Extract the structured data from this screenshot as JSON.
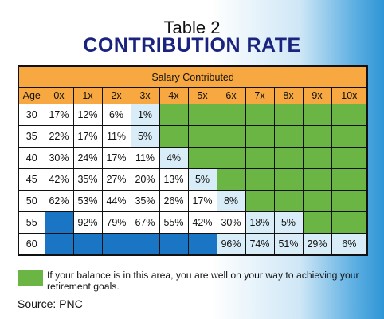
{
  "title_line1": "Table 2",
  "title_line2": "CONTRIBUTION RATE",
  "table": {
    "band_label": "Salary Contributed",
    "age_header": "Age",
    "columns": [
      "0x",
      "1x",
      "2x",
      "3x",
      "4x",
      "5x",
      "6x",
      "7x",
      "8x",
      "9x",
      "10x"
    ],
    "rows": [
      {
        "age": "30",
        "cells": [
          "17%",
          "12%",
          "6%",
          "1%",
          "",
          "",
          "",
          "",
          "",
          "",
          ""
        ],
        "fills": [
          "w",
          "w",
          "w",
          "l",
          "g",
          "g",
          "g",
          "g",
          "g",
          "g",
          "g"
        ]
      },
      {
        "age": "35",
        "cells": [
          "22%",
          "17%",
          "11%",
          "5%",
          "",
          "",
          "",
          "",
          "",
          "",
          ""
        ],
        "fills": [
          "w",
          "w",
          "w",
          "l",
          "g",
          "g",
          "g",
          "g",
          "g",
          "g",
          "g"
        ]
      },
      {
        "age": "40",
        "cells": [
          "30%",
          "24%",
          "17%",
          "11%",
          "4%",
          "",
          "",
          "",
          "",
          "",
          ""
        ],
        "fills": [
          "w",
          "w",
          "w",
          "w",
          "l",
          "g",
          "g",
          "g",
          "g",
          "g",
          "g"
        ]
      },
      {
        "age": "45",
        "cells": [
          "42%",
          "35%",
          "27%",
          "20%",
          "13%",
          "5%",
          "",
          "",
          "",
          "",
          ""
        ],
        "fills": [
          "w",
          "w",
          "w",
          "w",
          "w",
          "l",
          "g",
          "g",
          "g",
          "g",
          "g"
        ]
      },
      {
        "age": "50",
        "cells": [
          "62%",
          "53%",
          "44%",
          "35%",
          "26%",
          "17%",
          "8%",
          "",
          "",
          "",
          ""
        ],
        "fills": [
          "w",
          "w",
          "w",
          "w",
          "w",
          "w",
          "l",
          "g",
          "g",
          "g",
          "g"
        ]
      },
      {
        "age": "55",
        "cells": [
          "",
          "92%",
          "79%",
          "67%",
          "55%",
          "42%",
          "30%",
          "18%",
          "5%",
          "",
          ""
        ],
        "fills": [
          "b",
          "w",
          "w",
          "w",
          "w",
          "w",
          "w",
          "l",
          "l",
          "g",
          "g"
        ]
      },
      {
        "age": "60",
        "cells": [
          "",
          "",
          "",
          "",
          "",
          "",
          "96%",
          "74%",
          "51%",
          "29%",
          "6%"
        ],
        "fills": [
          "b",
          "b",
          "b",
          "b",
          "b",
          "b",
          "l",
          "l",
          "l",
          "l",
          "l"
        ]
      }
    ]
  },
  "colors": {
    "green": "#6ab544",
    "blue": "#1a75c4",
    "light_blue": "#d8edf8",
    "orange": "#f7a840",
    "title_navy": "#1a237e"
  },
  "legend_text": "If your balance is in this area, you are well on your way to achieving your retirement goals.",
  "source": "Source: PNC"
}
